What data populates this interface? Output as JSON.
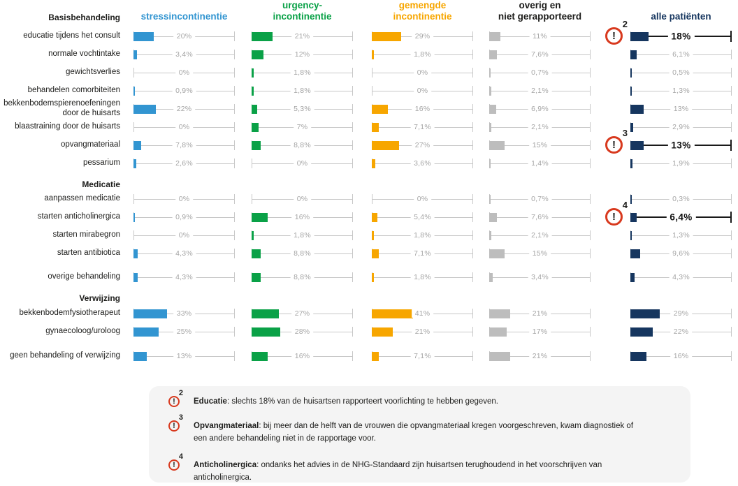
{
  "columns": [
    {
      "id": "stress",
      "label": "stressincontinentie",
      "color": "#3295D1",
      "header_color": "#3295D1"
    },
    {
      "id": "urgency",
      "label": "urgency-\nincontinentie",
      "color": "#0AA147",
      "header_color": "#0AA147"
    },
    {
      "id": "gemengde",
      "label": "gemengde\nincontinentie",
      "color": "#F7A600",
      "header_color": "#F7A600"
    },
    {
      "id": "overig",
      "label": "overig en\nniet gerapporteerd",
      "color": "#BDBDBD",
      "header_color": "#1D1D1B"
    },
    {
      "id": "alle",
      "label": "alle patiënten",
      "color": "#16365F",
      "header_color": "#16365F"
    }
  ],
  "chart_data": {
    "type": "bar",
    "unit": "%",
    "axis_range": [
      0,
      100
    ],
    "series_order": [
      "stressincontinentie",
      "urgency-incontinentie",
      "gemengde incontinentie",
      "overig en niet gerapporteerd",
      "alle patiënten"
    ],
    "sections": [
      {
        "title": "Basisbehandeling",
        "rows": [
          {
            "label": "educatie tijdens het consult",
            "values": [
              20,
              21,
              29,
              11,
              18
            ],
            "display": [
              "20%",
              "21%",
              "29%",
              "11%",
              "18%"
            ],
            "marker": "2"
          },
          {
            "label": "normale vochtintake",
            "values": [
              3.4,
              12,
              1.8,
              7.6,
              6.1
            ],
            "display": [
              "3,4%",
              "12%",
              "1,8%",
              "7,6%",
              "6,1%"
            ]
          },
          {
            "label": "gewichtsverlies",
            "values": [
              0,
              1.8,
              0,
              0.7,
              0.5
            ],
            "display": [
              "0%",
              "1,8%",
              "0%",
              "0,7%",
              "0,5%"
            ]
          },
          {
            "label": "behandelen comorbiteiten",
            "values": [
              0.9,
              1.8,
              0,
              2.1,
              1.3
            ],
            "display": [
              "0,9%",
              "1,8%",
              "0%",
              "2,1%",
              "1,3%"
            ]
          },
          {
            "label": "bekkenbodemspierenoefeningen\ndoor de huisarts",
            "values": [
              22,
              5.3,
              16,
              6.9,
              13
            ],
            "display": [
              "22%",
              "5,3%",
              "16%",
              "6,9%",
              "13%"
            ]
          },
          {
            "label": "blaastraining door de huisarts",
            "values": [
              0,
              7,
              7.1,
              2.1,
              2.9
            ],
            "display": [
              "0%",
              "7%",
              "7,1%",
              "2,1%",
              "2,9%"
            ]
          },
          {
            "label": "opvangmateriaal",
            "values": [
              7.8,
              8.8,
              27,
              15,
              13
            ],
            "display": [
              "7,8%",
              "8,8%",
              "27%",
              "15%",
              "13%"
            ],
            "marker": "3"
          },
          {
            "label": "pessarium",
            "values": [
              2.6,
              0,
              3.6,
              1.4,
              1.9
            ],
            "display": [
              "2,6%",
              "0%",
              "3,6%",
              "1,4%",
              "1,9%"
            ]
          }
        ]
      },
      {
        "title": "Medicatie",
        "rows": [
          {
            "label": "aanpassen medicatie",
            "values": [
              0,
              0,
              0,
              0.7,
              0.3
            ],
            "display": [
              "0%",
              "0%",
              "0%",
              "0,7%",
              "0,3%"
            ]
          },
          {
            "label": "starten anticholinergica",
            "values": [
              0.9,
              16,
              5.4,
              7.6,
              6.4
            ],
            "display": [
              "0,9%",
              "16%",
              "5,4%",
              "7,6%",
              "6,4%"
            ],
            "marker": "4"
          },
          {
            "label": "starten mirabegron",
            "values": [
              0,
              1.8,
              1.8,
              2.1,
              1.3
            ],
            "display": [
              "0%",
              "1,8%",
              "1,8%",
              "2,1%",
              "1,3%"
            ]
          },
          {
            "label": "starten antibiotica",
            "values": [
              4.3,
              8.8,
              7.1,
              15,
              9.6
            ],
            "display": [
              "4,3%",
              "8,8%",
              "7,1%",
              "15%",
              "9,6%"
            ]
          },
          {
            "label": "overige behandeling",
            "values": [
              4.3,
              8.8,
              1.8,
              3.4,
              4.3
            ],
            "display": [
              "4,3%",
              "8,8%",
              "1,8%",
              "3,4%",
              "4,3%"
            ]
          }
        ]
      },
      {
        "title": "Verwijzing",
        "rows": [
          {
            "label": "bekkenbodemfysiotherapeut",
            "values": [
              33,
              27,
              41,
              21,
              29
            ],
            "display": [
              "33%",
              "27%",
              "41%",
              "21%",
              "29%"
            ]
          },
          {
            "label": "gynaecoloog/uroloog",
            "values": [
              25,
              28,
              21,
              17,
              22
            ],
            "display": [
              "25%",
              "28%",
              "21%",
              "17%",
              "22%"
            ]
          },
          {
            "label": "geen behandeling of verwijzing",
            "values": [
              13,
              16,
              7.1,
              21,
              16
            ],
            "display": [
              "13%",
              "16%",
              "7,1%",
              "21%",
              "16%"
            ]
          }
        ]
      }
    ]
  },
  "notes": [
    {
      "marker": "2",
      "term": "Educatie",
      "text": ": slechts 18% van de huisartsen rapporteert voorlichting te hebben gegeven."
    },
    {
      "marker": "3",
      "term": "Opvangmateriaal",
      "text": ": bij meer dan de helft van de vrouwen die opvangmateriaal kregen voorgeschreven, kwam diagnostiek of een andere behandeling niet in de rapportage voor."
    },
    {
      "marker": "4",
      "term": "Anticholinergica",
      "text": ": ondanks het advies in de NHG-Standaard zijn huisartsen terughoudend in het voorschrijven van anticholinergica."
    }
  ],
  "colors": {
    "warning_red": "#D8391E",
    "axis_gray": "#C7C7C7",
    "value_gray": "#A5A5A5",
    "text_black": "#1D1D1B",
    "footer_bg": "#F4F4F4"
  }
}
